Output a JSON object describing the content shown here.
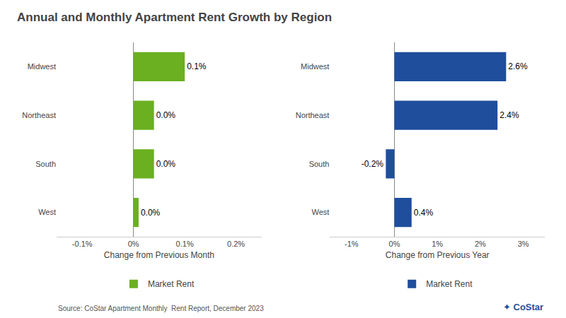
{
  "chart_data": [
    {
      "type": "bar",
      "orientation": "horizontal",
      "title": "Annual and Monthly Apartment Rent Growth by Region",
      "categories": [
        "West",
        "South",
        "Northeast",
        "Midwest"
      ],
      "series": [
        {
          "name": "Market Rent",
          "color": "#6ab020",
          "values": [
            0.01,
            0.04,
            0.04,
            0.1
          ],
          "value_labels": [
            "0.0%",
            "0.0%",
            "0.0%",
            "0.1%"
          ]
        }
      ],
      "xlabel": "Change from Previous Month",
      "xlim": [
        -0.15,
        0.25
      ],
      "xticks": [
        {
          "value": -0.1,
          "label": "-0.1%"
        },
        {
          "value": 0.0,
          "label": "0%"
        },
        {
          "value": 0.1,
          "label": "0.1%"
        },
        {
          "value": 0.2,
          "label": "0.2%"
        }
      ],
      "grid": false,
      "legend": "bottom",
      "data_labels": true,
      "annotations": [
        "Source: CoStar Apartment Monthly  Rent Report, December 2023",
        "✦",
        "CoStar"
      ]
    },
    {
      "type": "bar",
      "orientation": "horizontal",
      "categories": [
        "West",
        "South",
        "Northeast",
        "Midwest"
      ],
      "series": [
        {
          "name": "Market Rent",
          "color": "#1f4e9c",
          "values": [
            0.4,
            -0.2,
            2.4,
            2.6
          ],
          "value_labels": [
            "0.4%",
            "-0.2%",
            "2.4%",
            "2.6%"
          ]
        }
      ],
      "xlabel": "Change from Previous Year",
      "xlim": [
        -1.5,
        3.5
      ],
      "xticks": [
        {
          "value": -1.0,
          "label": "-1%"
        },
        {
          "value": 0.0,
          "label": "0%"
        },
        {
          "value": 1.0,
          "label": "1%"
        },
        {
          "value": 2.0,
          "label": "2%"
        },
        {
          "value": 3.0,
          "label": "3%"
        }
      ],
      "grid": false,
      "legend": "bottom",
      "data_labels": true
    }
  ]
}
